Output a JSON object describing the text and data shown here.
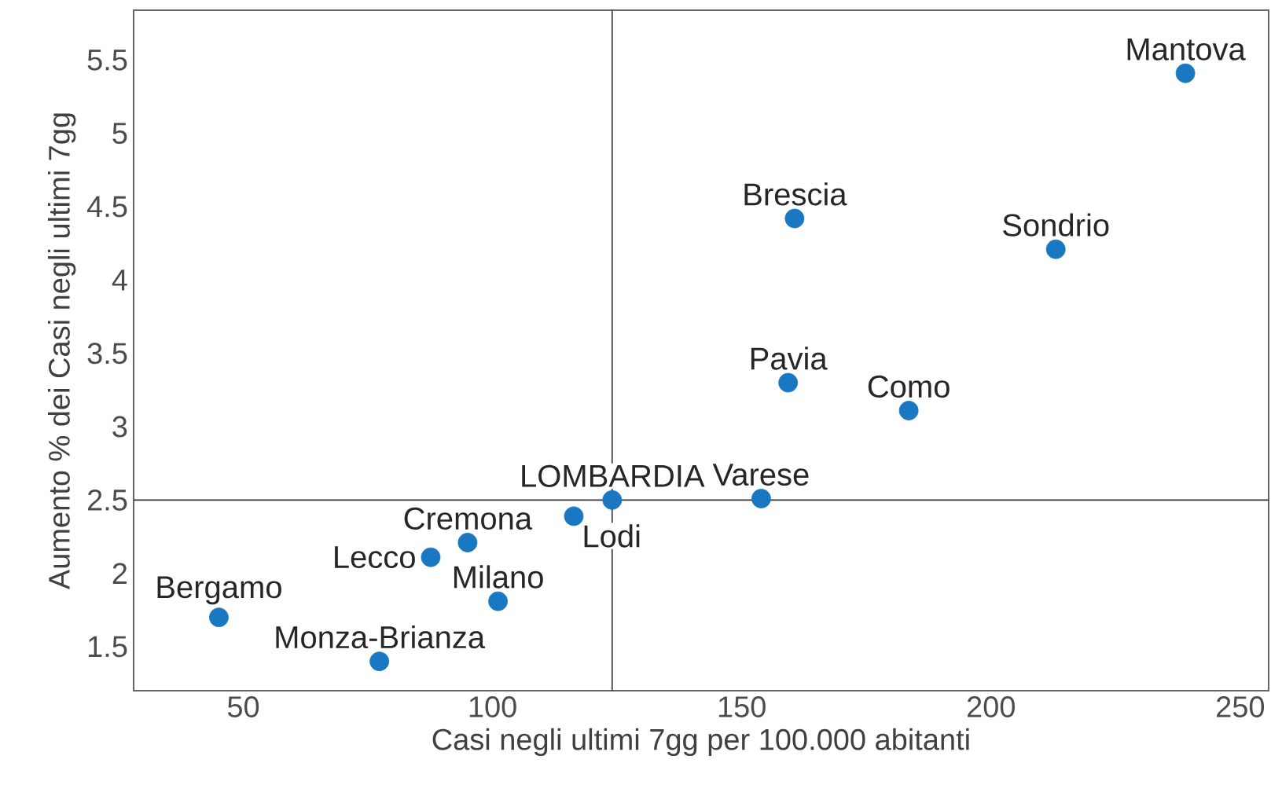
{
  "chart_data": {
    "type": "scatter",
    "xlabel": "Casi negli ultimi 7gg per 100.000 abitanti",
    "ylabel": "Aumento % dei Casi negli ultimi 7gg",
    "x": [
      239,
      160.6,
      213,
      159.3,
      183.5,
      153.9,
      124,
      116.3,
      95,
      87.6,
      101.1,
      45.1,
      77.3
    ],
    "series": [
      {
        "color": "#1a78c2",
        "values": [
          5.41,
          4.42,
          4.21,
          3.3,
          3.11,
          2.51,
          2.5,
          2.39,
          2.21,
          2.11,
          1.81,
          1.7,
          1.4
        ]
      }
    ],
    "annotations": [
      {
        "text": "Mantova",
        "x": 239,
        "y": 5.41
      },
      {
        "text": "Brescia",
        "x": 160.6,
        "y": 4.42
      },
      {
        "text": "Sondrio",
        "x": 213,
        "y": 4.21
      },
      {
        "text": "Pavia",
        "x": 159.3,
        "y": 3.3
      },
      {
        "text": "Como",
        "x": 183.5,
        "y": 3.11
      },
      {
        "text": "Varese",
        "x": 153.9,
        "y": 2.51
      },
      {
        "text": "LOMBARDIA",
        "x": 124,
        "y": 2.5
      },
      {
        "text": "Lodi",
        "x": 116.3,
        "y": 2.39
      },
      {
        "text": "Cremona",
        "x": 95,
        "y": 2.21
      },
      {
        "text": "Lecco",
        "x": 87.6,
        "y": 2.11
      },
      {
        "text": "Milano",
        "x": 101.1,
        "y": 1.81
      },
      {
        "text": "Bergamo",
        "x": 45.1,
        "y": 1.7
      },
      {
        "text": "Monza-Brianza",
        "x": 77.3,
        "y": 1.4
      }
    ],
    "ref_lines": [
      {
        "axis": "x",
        "value": 124,
        "color": "#333333"
      },
      {
        "axis": "y",
        "value": 2.5,
        "color": "#333333"
      }
    ],
    "xlim": [
      28,
      255.7
    ],
    "ylim": [
      1.2,
      5.84
    ],
    "xticks": [
      50,
      100,
      150,
      200,
      250
    ],
    "yticks": [
      1.5,
      2,
      2.5,
      3,
      3.5,
      4,
      4.5,
      5,
      5.5
    ],
    "grid": false
  }
}
